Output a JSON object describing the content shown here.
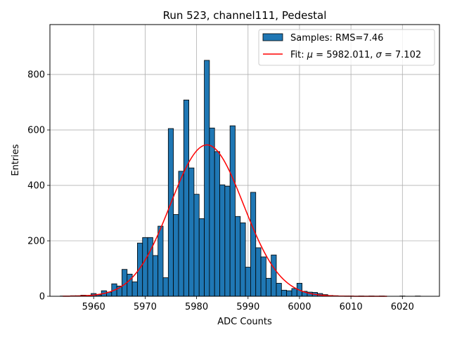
{
  "chart_data": {
    "type": "bar",
    "title": "Run 523, channel111, Pedestal",
    "xlabel": "ADC Counts",
    "ylabel": "Entries",
    "xlim": [
      5951.5,
      6027.2
    ],
    "ylim": [
      0,
      980
    ],
    "xticks": [
      5960,
      5970,
      5980,
      5990,
      6000,
      6010,
      6020
    ],
    "yticks": [
      0,
      200,
      400,
      600,
      800
    ],
    "grid": true,
    "legend_position": "top-right",
    "bin_width": 1,
    "histogram": {
      "name": "Samples: RMS=7.46",
      "color": "#1f77b4",
      "bins": [
        {
          "x": 5954,
          "y": 1
        },
        {
          "x": 5955,
          "y": 1
        },
        {
          "x": 5956,
          "y": 2
        },
        {
          "x": 5957,
          "y": 2
        },
        {
          "x": 5958,
          "y": 4
        },
        {
          "x": 5959,
          "y": 3
        },
        {
          "x": 5960,
          "y": 10
        },
        {
          "x": 5961,
          "y": 5
        },
        {
          "x": 5962,
          "y": 20
        },
        {
          "x": 5963,
          "y": 15
        },
        {
          "x": 5964,
          "y": 45
        },
        {
          "x": 5965,
          "y": 37
        },
        {
          "x": 5966,
          "y": 97
        },
        {
          "x": 5967,
          "y": 80
        },
        {
          "x": 5968,
          "y": 52
        },
        {
          "x": 5969,
          "y": 192
        },
        {
          "x": 5970,
          "y": 212
        },
        {
          "x": 5971,
          "y": 212
        },
        {
          "x": 5972,
          "y": 147
        },
        {
          "x": 5973,
          "y": 253
        },
        {
          "x": 5974,
          "y": 67
        },
        {
          "x": 5975,
          "y": 605
        },
        {
          "x": 5976,
          "y": 295
        },
        {
          "x": 5977,
          "y": 451
        },
        {
          "x": 5978,
          "y": 708
        },
        {
          "x": 5979,
          "y": 463
        },
        {
          "x": 5980,
          "y": 368
        },
        {
          "x": 5981,
          "y": 280
        },
        {
          "x": 5982,
          "y": 851
        },
        {
          "x": 5983,
          "y": 607
        },
        {
          "x": 5984,
          "y": 522
        },
        {
          "x": 5985,
          "y": 402
        },
        {
          "x": 5986,
          "y": 397
        },
        {
          "x": 5987,
          "y": 615
        },
        {
          "x": 5988,
          "y": 288
        },
        {
          "x": 5989,
          "y": 265
        },
        {
          "x": 5990,
          "y": 105
        },
        {
          "x": 5991,
          "y": 375
        },
        {
          "x": 5992,
          "y": 175
        },
        {
          "x": 5993,
          "y": 142
        },
        {
          "x": 5994,
          "y": 65
        },
        {
          "x": 5995,
          "y": 149
        },
        {
          "x": 5996,
          "y": 47
        },
        {
          "x": 5997,
          "y": 22
        },
        {
          "x": 5998,
          "y": 20
        },
        {
          "x": 5999,
          "y": 28
        },
        {
          "x": 6000,
          "y": 47
        },
        {
          "x": 6001,
          "y": 18
        },
        {
          "x": 6002,
          "y": 15
        },
        {
          "x": 6003,
          "y": 14
        },
        {
          "x": 6004,
          "y": 10
        },
        {
          "x": 6005,
          "y": 6
        },
        {
          "x": 6006,
          "y": 3
        },
        {
          "x": 6007,
          "y": 2
        },
        {
          "x": 6008,
          "y": 1
        },
        {
          "x": 6009,
          "y": 1
        },
        {
          "x": 6010,
          "y": 1
        },
        {
          "x": 6012,
          "y": 1
        },
        {
          "x": 6014,
          "y": 1
        },
        {
          "x": 6016,
          "y": 1
        },
        {
          "x": 6018,
          "y": 0
        },
        {
          "x": 6020,
          "y": 1
        },
        {
          "x": 6022,
          "y": 0
        },
        {
          "x": 6023,
          "y": 1
        }
      ]
    },
    "fit": {
      "name_prefix": "Fit: ",
      "mu_symbol": "μ",
      "mu_text": " = 5982.011, ",
      "sigma_symbol": "σ",
      "sigma_text": " = 7.102",
      "type": "gaussian",
      "mu": 5982.011,
      "sigma": 7.102,
      "amplitude": 546,
      "x_range": [
        5954,
        6017
      ],
      "color": "#ff0000"
    }
  }
}
